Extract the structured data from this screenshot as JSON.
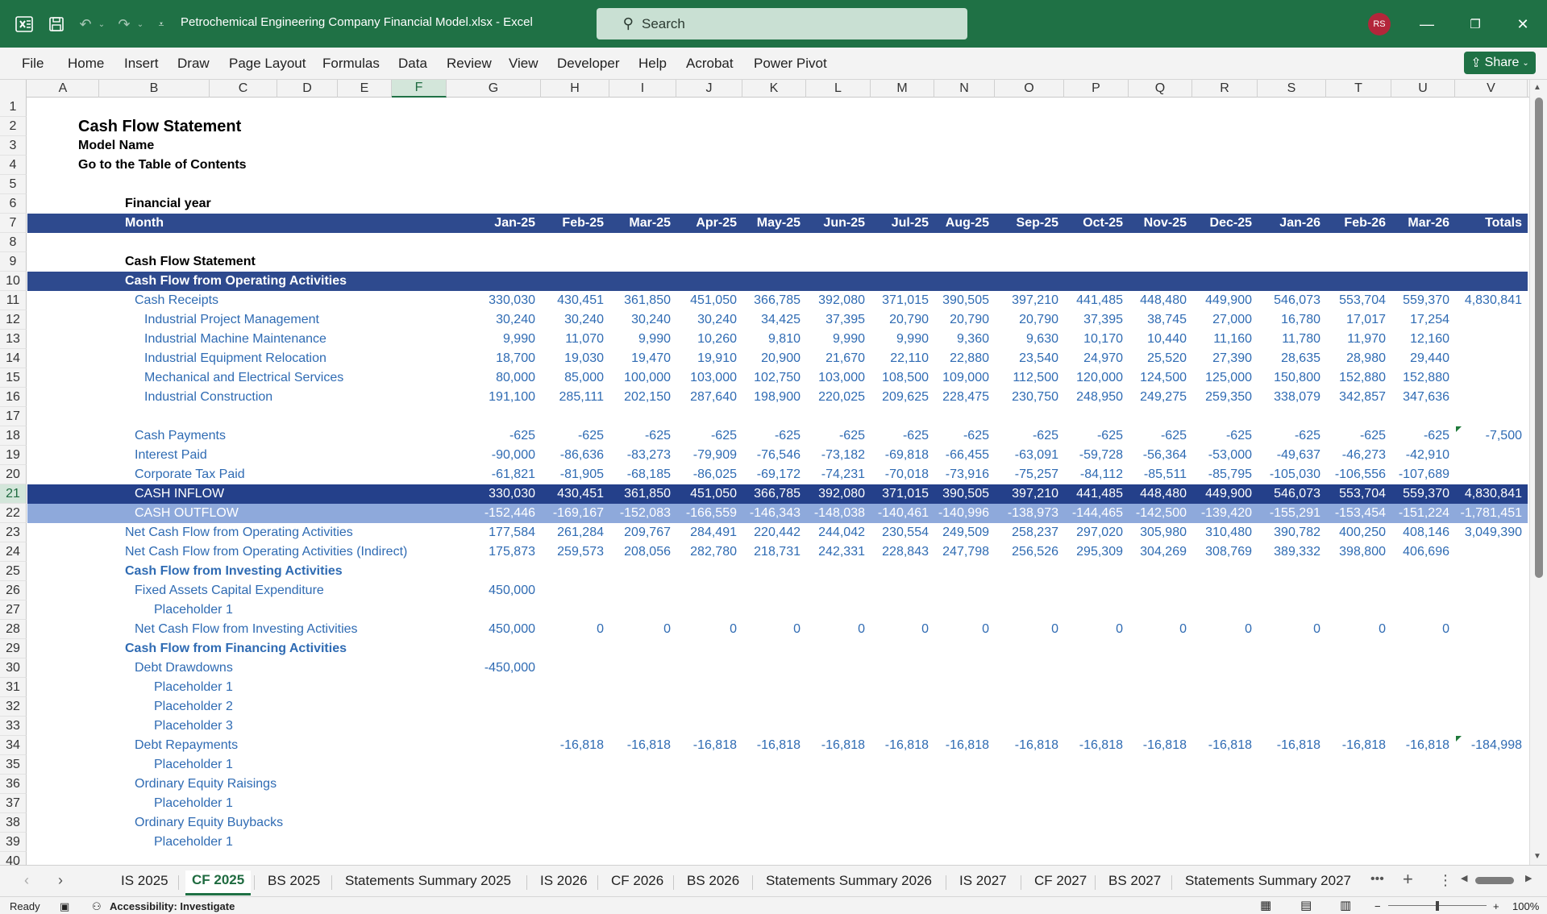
{
  "window": {
    "doc_title": "Petrochemical Engineering Company Financial Model.xlsx  -  Excel",
    "search_placeholder": "Search",
    "user_initials": "RS"
  },
  "menu": [
    "File",
    "Home",
    "Insert",
    "Draw",
    "Page Layout",
    "Formulas",
    "Data",
    "Review",
    "View",
    "Developer",
    "Help",
    "Acrobat",
    "Power Pivot"
  ],
  "share_label": "Share",
  "columns": [
    "A",
    "B",
    "C",
    "D",
    "E",
    "F",
    "G",
    "H",
    "I",
    "J",
    "K",
    "L",
    "M",
    "N",
    "O",
    "P",
    "Q",
    "R",
    "S",
    "T",
    "U",
    "V"
  ],
  "selected_column": "F",
  "row_numbers": [
    "1",
    "2",
    "3",
    "4",
    "5",
    "6",
    "7",
    "8",
    "9",
    "10",
    "11",
    "12",
    "13",
    "14",
    "15",
    "16",
    "17",
    "18",
    "19",
    "20",
    "21",
    "22",
    "23",
    "24",
    "25",
    "26",
    "27",
    "28",
    "29",
    "30",
    "31",
    "32",
    "33",
    "34",
    "35",
    "36",
    "37",
    "38",
    "39",
    "40"
  ],
  "selected_row": "21",
  "sheet": {
    "title": "Cash Flow Statement",
    "model_name": "Model Name",
    "toc_link": "Go to the Table of Contents",
    "financial_year_label": "Financial year",
    "month_label": "Month",
    "months": [
      "Jan-25",
      "Feb-25",
      "Mar-25",
      "Apr-25",
      "May-25",
      "Jun-25",
      "Jul-25",
      "Aug-25",
      "Sep-25",
      "Oct-25",
      "Nov-25",
      "Dec-25",
      "Jan-26",
      "Feb-26",
      "Mar-26",
      "Totals"
    ],
    "section_cfs": "Cash Flow Statement",
    "section_operating": "Cash Flow from Operating Activities",
    "rows": [
      {
        "r": 11,
        "label": "Cash Receipts",
        "indent": 1,
        "values": [
          "330,030",
          "430,451",
          "361,850",
          "451,050",
          "366,785",
          "392,080",
          "371,015",
          "390,505",
          "397,210",
          "441,485",
          "448,480",
          "449,900",
          "546,073",
          "553,704",
          "559,370",
          "4,830,841"
        ]
      },
      {
        "r": 12,
        "label": "Industrial Project Management",
        "indent": 2,
        "values": [
          "30,240",
          "30,240",
          "30,240",
          "30,240",
          "34,425",
          "37,395",
          "20,790",
          "20,790",
          "20,790",
          "37,395",
          "38,745",
          "27,000",
          "16,780",
          "17,017",
          "17,254",
          ""
        ]
      },
      {
        "r": 13,
        "label": "Industrial Machine Maintenance",
        "indent": 2,
        "values": [
          "9,990",
          "11,070",
          "9,990",
          "10,260",
          "9,810",
          "9,990",
          "9,990",
          "9,360",
          "9,630",
          "10,170",
          "10,440",
          "11,160",
          "11,780",
          "11,970",
          "12,160",
          ""
        ]
      },
      {
        "r": 14,
        "label": "Industrial Equipment Relocation",
        "indent": 2,
        "values": [
          "18,700",
          "19,030",
          "19,470",
          "19,910",
          "20,900",
          "21,670",
          "22,110",
          "22,880",
          "23,540",
          "24,970",
          "25,520",
          "27,390",
          "28,635",
          "28,980",
          "29,440",
          ""
        ]
      },
      {
        "r": 15,
        "label": "Mechanical and Electrical Services",
        "indent": 2,
        "values": [
          "80,000",
          "85,000",
          "100,000",
          "103,000",
          "102,750",
          "103,000",
          "108,500",
          "109,000",
          "112,500",
          "120,000",
          "124,500",
          "125,000",
          "150,800",
          "152,880",
          "152,880",
          ""
        ]
      },
      {
        "r": 16,
        "label": "Industrial Construction",
        "indent": 2,
        "values": [
          "191,100",
          "285,111",
          "202,150",
          "287,640",
          "198,900",
          "220,025",
          "209,625",
          "228,475",
          "230,750",
          "248,950",
          "249,275",
          "259,350",
          "338,079",
          "342,857",
          "347,636",
          ""
        ]
      },
      {
        "r": 18,
        "label": "Cash Payments",
        "indent": 1,
        "values": [
          "-625",
          "-625",
          "-625",
          "-625",
          "-625",
          "-625",
          "-625",
          "-625",
          "-625",
          "-625",
          "-625",
          "-625",
          "-625",
          "-625",
          "-625",
          "-7,500"
        ],
        "flag": true
      },
      {
        "r": 19,
        "label": "Interest Paid",
        "indent": 1,
        "values": [
          "-90,000",
          "-86,636",
          "-83,273",
          "-79,909",
          "-76,546",
          "-73,182",
          "-69,818",
          "-66,455",
          "-63,091",
          "-59,728",
          "-56,364",
          "-53,000",
          "-49,637",
          "-46,273",
          "-42,910",
          ""
        ]
      },
      {
        "r": 20,
        "label": "Corporate Tax Paid",
        "indent": 1,
        "values": [
          "-61,821",
          "-81,905",
          "-68,185",
          "-86,025",
          "-69,172",
          "-74,231",
          "-70,018",
          "-73,916",
          "-75,257",
          "-84,112",
          "-85,511",
          "-85,795",
          "-105,030",
          "-106,556",
          "-107,689",
          ""
        ]
      },
      {
        "r": 21,
        "label": "CASH INFLOW",
        "indent": 1,
        "band": "mid",
        "values": [
          "330,030",
          "430,451",
          "361,850",
          "451,050",
          "366,785",
          "392,080",
          "371,015",
          "390,505",
          "397,210",
          "441,485",
          "448,480",
          "449,900",
          "546,073",
          "553,704",
          "559,370",
          "4,830,841"
        ]
      },
      {
        "r": 22,
        "label": "CASH OUTFLOW",
        "indent": 1,
        "band": "light",
        "values": [
          "-152,446",
          "-169,167",
          "-152,083",
          "-166,559",
          "-146,343",
          "-148,038",
          "-140,461",
          "-140,996",
          "-138,973",
          "-144,465",
          "-142,500",
          "-139,420",
          "-155,291",
          "-153,454",
          "-151,224",
          "-1,781,451"
        ]
      },
      {
        "r": 23,
        "label": "Net Cash Flow from Operating Activities",
        "indent": 0,
        "values": [
          "177,584",
          "261,284",
          "209,767",
          "284,491",
          "220,442",
          "244,042",
          "230,554",
          "249,509",
          "258,237",
          "297,020",
          "305,980",
          "310,480",
          "390,782",
          "400,250",
          "408,146",
          "3,049,390"
        ]
      },
      {
        "r": 24,
        "label": "Net Cash Flow from Operating Activities (Indirect)",
        "indent": 0,
        "values": [
          "175,873",
          "259,573",
          "208,056",
          "282,780",
          "218,731",
          "242,331",
          "228,843",
          "247,798",
          "256,526",
          "295,309",
          "304,269",
          "308,769",
          "389,332",
          "398,800",
          "406,696",
          ""
        ]
      },
      {
        "r": 25,
        "label": "Cash Flow from Investing Activities",
        "indent": 0,
        "bold": true,
        "values": []
      },
      {
        "r": 26,
        "label": "Fixed Assets Capital Expenditure",
        "indent": 1,
        "values": [
          "450,000"
        ]
      },
      {
        "r": 27,
        "label": "Placeholder 1",
        "indent": 3,
        "values": []
      },
      {
        "r": 28,
        "label": "Net Cash Flow from Investing Activities",
        "indent": 1,
        "values": [
          "450,000",
          "0",
          "0",
          "0",
          "0",
          "0",
          "0",
          "0",
          "0",
          "0",
          "0",
          "0",
          "0",
          "0",
          "0",
          ""
        ]
      },
      {
        "r": 29,
        "label": "Cash Flow from Financing Activities",
        "indent": 0,
        "bold": true,
        "values": []
      },
      {
        "r": 30,
        "label": "Debt Drawdowns",
        "indent": 1,
        "values": [
          "-450,000"
        ]
      },
      {
        "r": 31,
        "label": "Placeholder 1",
        "indent": 3,
        "values": []
      },
      {
        "r": 32,
        "label": "Placeholder 2",
        "indent": 3,
        "values": []
      },
      {
        "r": 33,
        "label": "Placeholder 3",
        "indent": 3,
        "values": []
      },
      {
        "r": 34,
        "label": "Debt Repayments",
        "indent": 1,
        "values": [
          "",
          "-16,818",
          "-16,818",
          "-16,818",
          "-16,818",
          "-16,818",
          "-16,818",
          "-16,818",
          "-16,818",
          "-16,818",
          "-16,818",
          "-16,818",
          "-16,818",
          "-16,818",
          "-16,818",
          "-184,998"
        ],
        "flag": true
      },
      {
        "r": 35,
        "label": "Placeholder 1",
        "indent": 3,
        "values": []
      },
      {
        "r": 36,
        "label": "Ordinary Equity Raisings",
        "indent": 1,
        "values": []
      },
      {
        "r": 37,
        "label": "Placeholder 1",
        "indent": 3,
        "values": []
      },
      {
        "r": 38,
        "label": "Ordinary Equity Buybacks",
        "indent": 1,
        "values": []
      },
      {
        "r": 39,
        "label": "Placeholder 1",
        "indent": 3,
        "values": []
      }
    ]
  },
  "sheet_tabs": [
    "IS 2025",
    "CF 2025",
    "BS 2025",
    "Statements Summary 2025",
    "IS 2026",
    "CF 2026",
    "BS 2026",
    "Statements Summary 2026",
    "IS 2027",
    "CF 2027",
    "BS 2027",
    "Statements Summary 2027"
  ],
  "active_tab": "CF 2025",
  "status": {
    "ready": "Ready",
    "accessibility": "Accessibility: Investigate",
    "zoom": "100%"
  },
  "colors": {
    "excel_green": "#1f7145",
    "header_band": "#2e4a8e",
    "inflow_band": "#24408a",
    "outflow_band": "#8ea9db",
    "label_blue": "#2f6bb3"
  }
}
